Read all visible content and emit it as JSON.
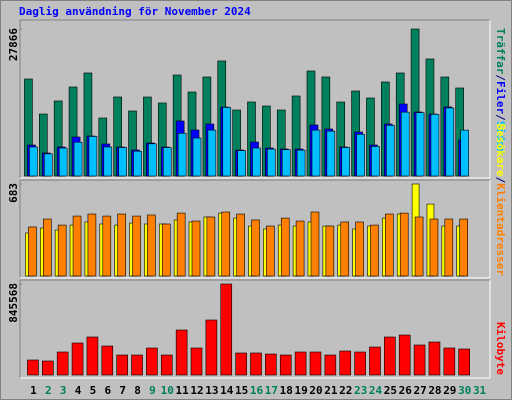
{
  "chart_data": {
    "type": "bar",
    "title": "Daglig användning för November 2024",
    "categories": [
      "1",
      "2",
      "3",
      "4",
      "5",
      "6",
      "7",
      "8",
      "9",
      "10",
      "11",
      "12",
      "13",
      "14",
      "15",
      "16",
      "17",
      "18",
      "19",
      "20",
      "21",
      "22",
      "23",
      "24",
      "25",
      "26",
      "27",
      "28",
      "29",
      "30",
      "31"
    ],
    "category_colors": [
      "#000000",
      "#00805c",
      "#00805c",
      "#000000",
      "#000000",
      "#000000",
      "#000000",
      "#000000",
      "#00805c",
      "#00805c",
      "#000000",
      "#000000",
      "#000000",
      "#000000",
      "#000000",
      "#00805c",
      "#00805c",
      "#000000",
      "#000000",
      "#000000",
      "#000000",
      "#000000",
      "#00805c",
      "#00805c",
      "#000000",
      "#000000",
      "#000000",
      "#000000",
      "#000000",
      "#00805c",
      "#00805c"
    ],
    "legend_separator": "/",
    "panels": [
      {
        "ylim": [
          0,
          27866
        ],
        "yticks": [
          27866
        ],
        "series": [
          {
            "name": "Träffar",
            "color": "#00805c",
            "values": [
              18390,
              11755,
              14220,
              16874,
              19529,
              10997,
              14978,
              12324,
              14978,
              13841,
              19150,
              15926,
              18770,
              21804,
              12514,
              14030,
              13272,
              12514,
              15168,
              19908,
              18770,
              14030,
              16116,
              14789,
              17822,
              19529,
              27866,
              22183,
              18770,
              16685,
              null
            ]
          },
          {
            "name": "Filer",
            "color": "#0000ff",
            "values": [
              5878,
              4361,
              5498,
              7394,
              7584,
              6067,
              5498,
              4930,
              6257,
              5498,
              10428,
              8722,
              9859,
              13082,
              4930,
              6446,
              5309,
              5119,
              5119,
              9670,
              8911,
              5498,
              8342,
              5878,
              9859,
              13651,
              12134,
              11755,
              13082,
              6826,
              null
            ]
          },
          {
            "name": "Sidor",
            "color": "#00bfff",
            "values": [
              5500,
              4200,
              5300,
              6400,
              7500,
              5500,
              5400,
              4700,
              6100,
              5400,
              8100,
              7200,
              8700,
              13000,
              4800,
              5300,
              5100,
              5000,
              4900,
              8700,
              8500,
              5400,
              7900,
              5600,
              9600,
              12100,
              12000,
              11700,
              12900,
              8700,
              null
            ]
          }
        ]
      },
      {
        "ylim": [
          0,
          683
        ],
        "yticks": [
          683
        ],
        "series": [
          {
            "name": "Besökare",
            "color": "#ffff00",
            "values": [
              319,
              356,
              341,
              378,
              401,
              386,
              378,
              393,
              386,
              386,
              416,
              401,
              438,
              467,
              430,
              371,
              349,
              378,
              371,
              401,
              371,
              378,
              349,
              371,
              430,
              460,
              683,
              534,
              371,
              371,
              null
            ]
          },
          {
            "name": "Klientadresser",
            "color": "#ff8000",
            "values": [
              364,
              423,
              378,
              445,
              460,
              445,
              460,
              445,
              453,
              386,
              467,
              408,
              438,
              475,
              460,
              416,
              371,
              430,
              408,
              475,
              371,
              401,
              401,
              378,
              460,
              467,
              438,
              423,
              423,
              423,
              null
            ]
          }
        ]
      },
      {
        "ylim": [
          0,
          845568
        ],
        "yticks": [
          845568
        ],
        "series": [
          {
            "name": "Kilobyte",
            "color": "#ff0000",
            "values": [
              139380,
              130088,
              213716,
              297344,
              353096,
              269468,
              185840,
              185840,
              250884,
              185840,
              418140,
              250884,
              511060,
              845568,
              204424,
              204424,
              195132,
              185840,
              213716,
              213716,
              185840,
              223008,
              213716,
              260176,
              353096,
              371680,
              278760,
              306636,
              250884,
              241592,
              null
            ]
          }
        ]
      }
    ]
  }
}
